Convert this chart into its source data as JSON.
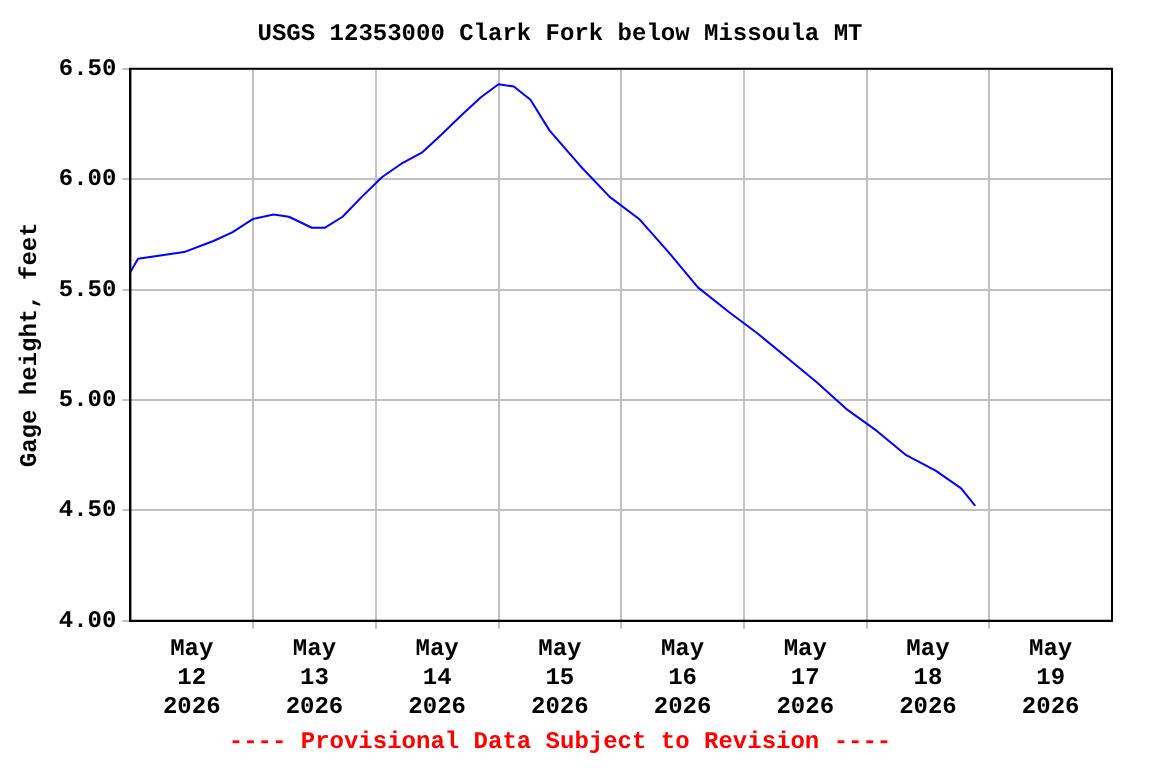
{
  "chart_data": {
    "type": "line",
    "title": "USGS 12353000 Clark Fork below Missoula MT",
    "ylabel": "Gage height, feet",
    "annotations": [
      "---- Provisional Data Subject to Revision ----"
    ],
    "xlim": [
      "2026-05-12",
      "2026-05-20"
    ],
    "xticks": [
      {
        "value": "2026-05-12T12:00",
        "label": "May\n12\n2026"
      },
      {
        "value": "2026-05-13",
        "label": null
      },
      {
        "value": "2026-05-13T12:00",
        "label": "May\n13\n2026"
      },
      {
        "value": "2026-05-14",
        "label": null
      },
      {
        "value": "2026-05-14T12:00",
        "label": "May\n14\n2026"
      },
      {
        "value": "2026-05-15",
        "label": null
      },
      {
        "value": "2026-05-15T12:00",
        "label": "May\n15\n2026"
      },
      {
        "value": "2026-05-16",
        "label": null
      },
      {
        "value": "2026-05-16T12:00",
        "label": "May\n16\n2026"
      },
      {
        "value": "2026-05-17",
        "label": null
      },
      {
        "value": "2026-05-17T12:00",
        "label": "May\n17\n2026"
      },
      {
        "value": "2026-05-18",
        "label": null
      },
      {
        "value": "2026-05-18T12:00",
        "label": "May\n18\n2026"
      },
      {
        "value": "2026-05-19",
        "label": null
      },
      {
        "value": "2026-05-19T12:00",
        "label": "May\n19\n2026"
      }
    ],
    "ylim": [
      4,
      6.5
    ],
    "yticks": [
      {
        "value": 4,
        "label": "4.00"
      },
      {
        "value": 4.5,
        "label": "4.50"
      },
      {
        "value": 5,
        "label": "5.00"
      },
      {
        "value": 5.5,
        "label": "5.50"
      },
      {
        "value": 6,
        "label": "6.00"
      },
      {
        "value": 6.5,
        "label": "6.50"
      }
    ],
    "grid": true,
    "legend": false,
    "marker": "none",
    "line_style": "solid",
    "series": [
      {
        "color": "#0000ff",
        "x": [
          "2026-05-12T00:00",
          "2026-05-12T01:30",
          "2026-05-12T04:30",
          "2026-05-12T10:30",
          "2026-05-12T16:15",
          "2026-05-12T20:00",
          "2026-05-13T00:00",
          "2026-05-13T04:00",
          "2026-05-13T07:00",
          "2026-05-13T11:30",
          "2026-05-13T14:00",
          "2026-05-13T17:30",
          "2026-05-13T21:15",
          "2026-05-14T01:15",
          "2026-05-14T05:00",
          "2026-05-14T09:00",
          "2026-05-14T12:45",
          "2026-05-14T16:45",
          "2026-05-14T20:30",
          "2026-05-15T00:00",
          "2026-05-15T03:00",
          "2026-05-15T06:15",
          "2026-05-15T10:00",
          "2026-05-15T16:00",
          "2026-05-15T21:45",
          "2026-05-16T03:30",
          "2026-05-16T09:15",
          "2026-05-16T15:00",
          "2026-05-16T21:00",
          "2026-05-17T02:45",
          "2026-05-17T08:30",
          "2026-05-17T14:15",
          "2026-05-17T20:00",
          "2026-05-18T02:00",
          "2026-05-18T07:45",
          "2026-05-18T13:30",
          "2026-05-18T18:30",
          "2026-05-18T21:15"
        ],
        "values": [
          5.58,
          5.64,
          5.65,
          5.67,
          5.72,
          5.76,
          5.82,
          5.84,
          5.83,
          5.78,
          5.78,
          5.83,
          5.92,
          6.01,
          6.07,
          6.12,
          6.2,
          6.29,
          6.37,
          6.43,
          6.42,
          6.36,
          6.22,
          6.06,
          5.92,
          5.82,
          5.67,
          5.51,
          5.4,
          5.3,
          5.19,
          5.08,
          4.96,
          4.86,
          4.75,
          4.68,
          4.6,
          4.52
        ]
      }
    ]
  }
}
